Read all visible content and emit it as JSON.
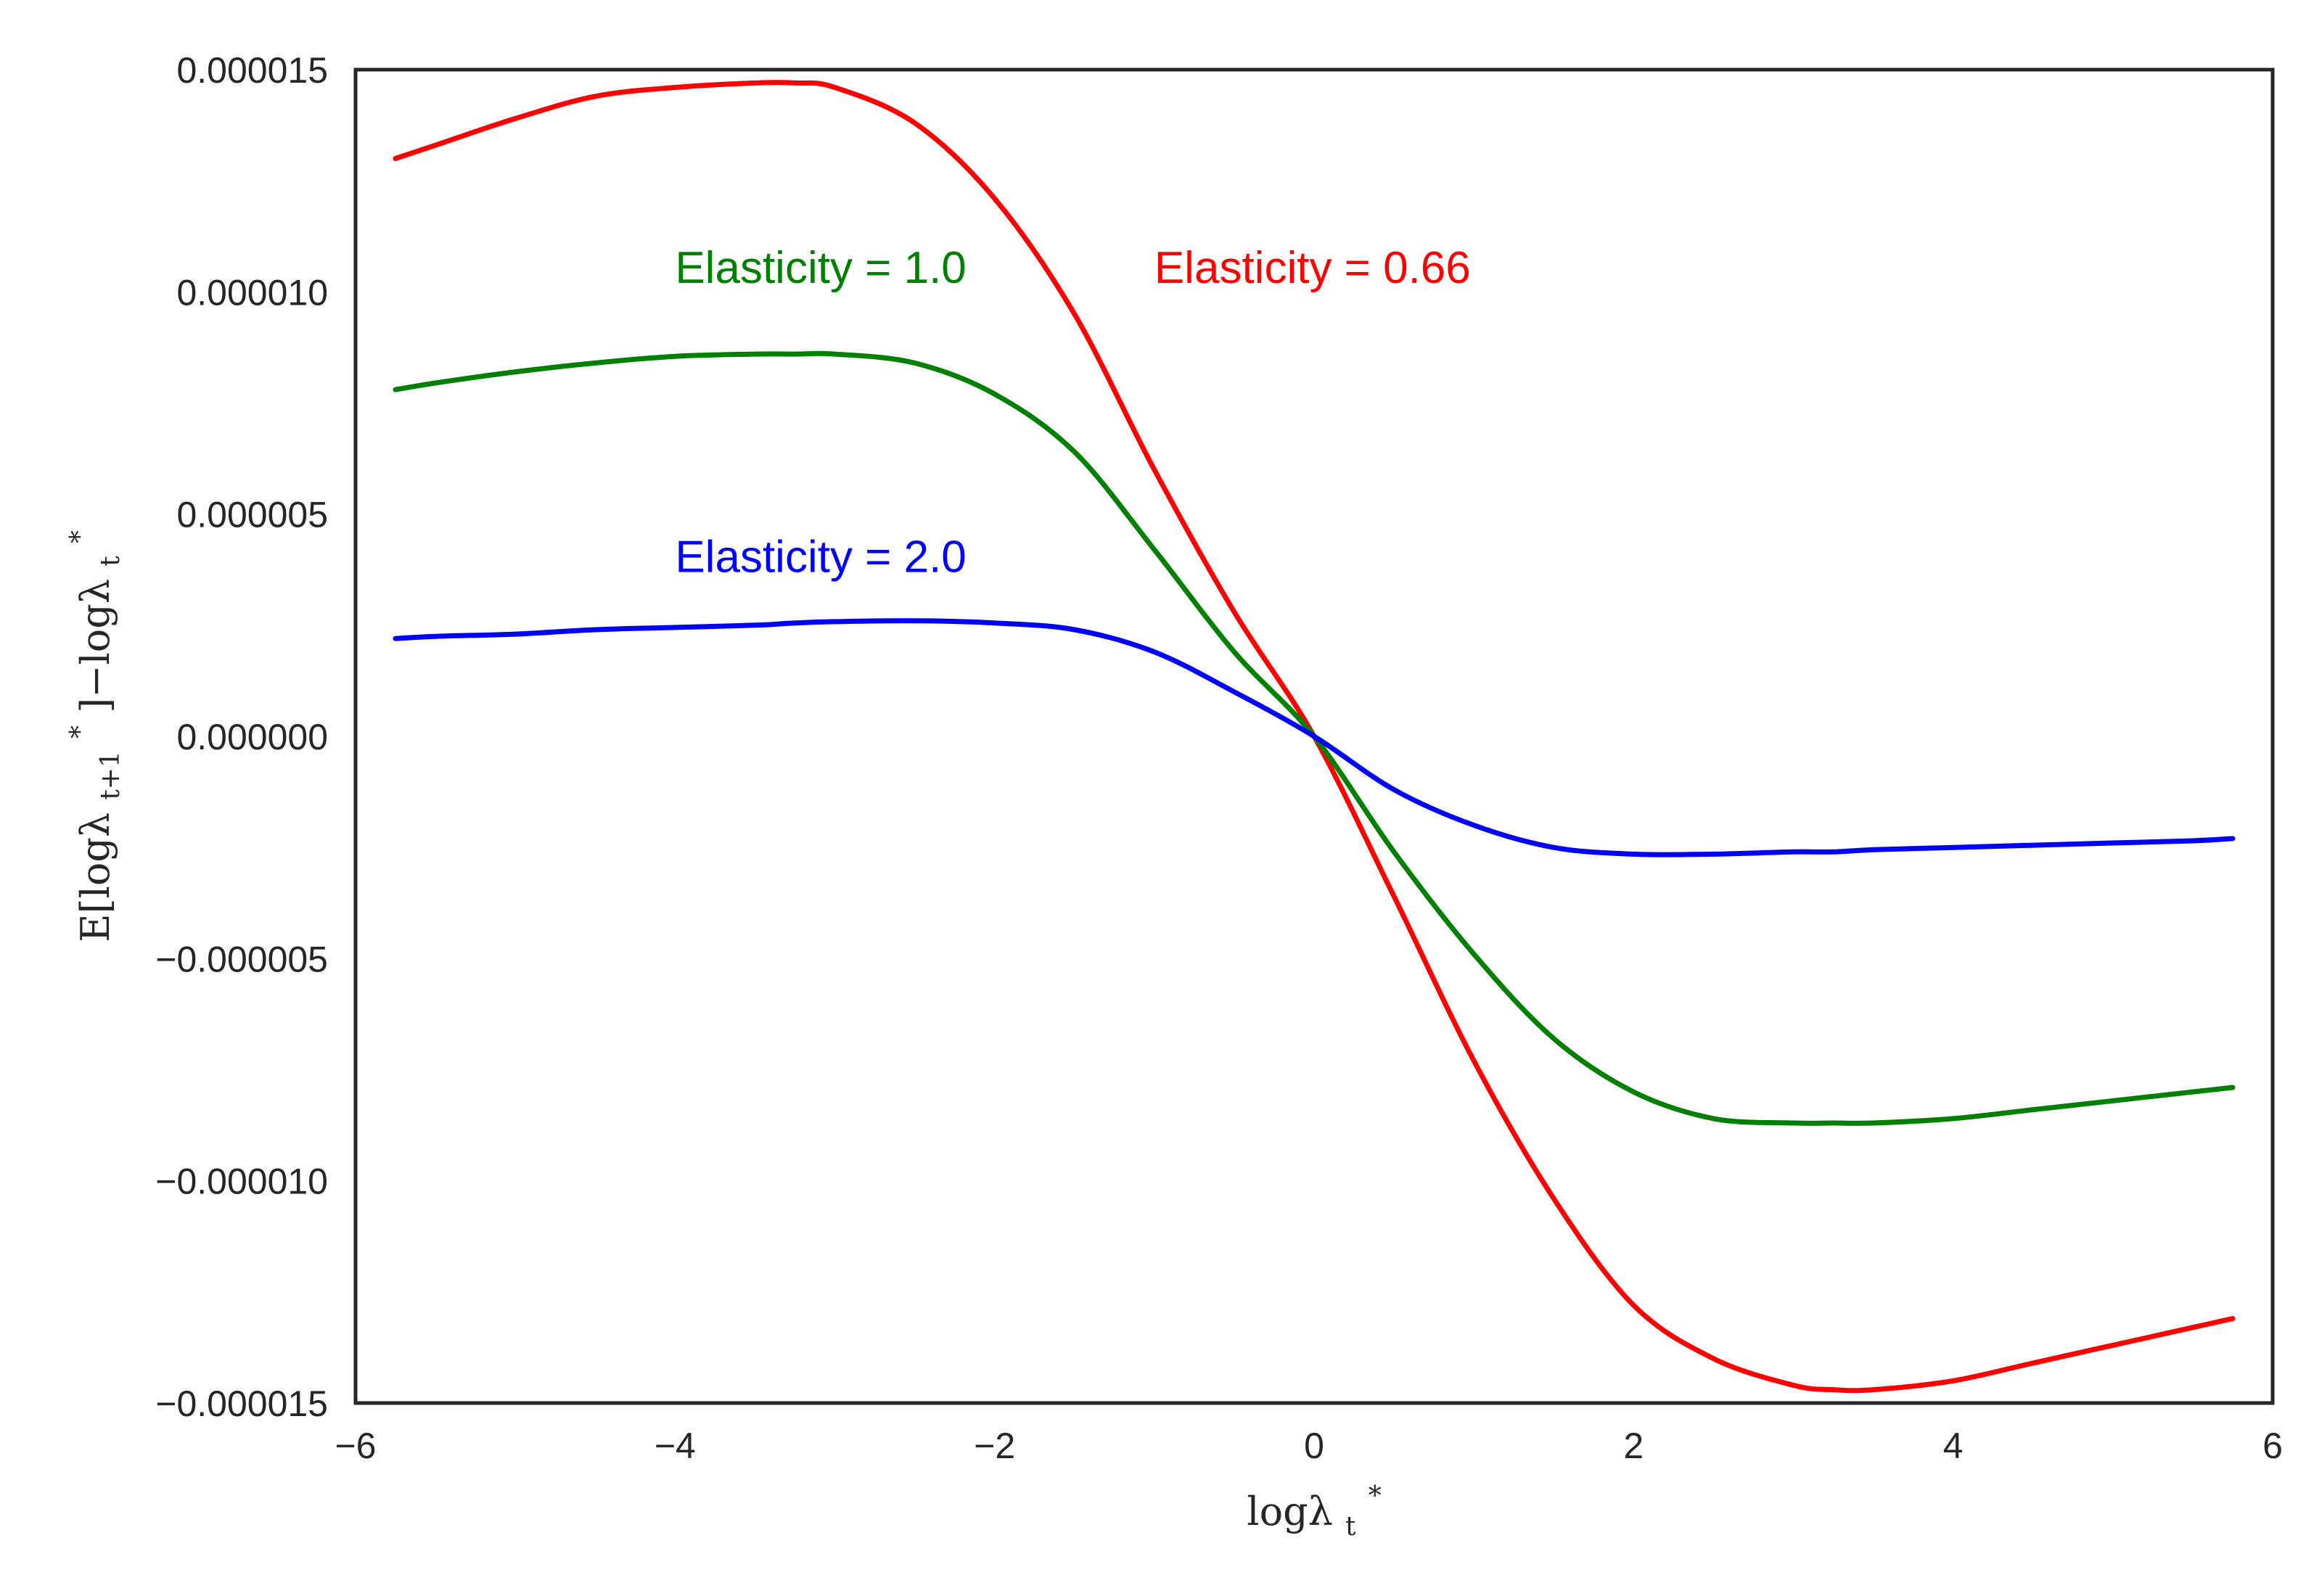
{
  "chart_data": {
    "type": "line",
    "xlabel": "logλ",
    "xlabel_sub": "t",
    "xlabel_sup": "*",
    "ylabel": "E[logλ",
    "ylabel_sub": "t+1",
    "ylabel_sup": "*",
    "ylabel_rest": "]−logλ",
    "ylabel_sub2": "t",
    "ylabel_sup2": "*",
    "xlim": [
      -6,
      6
    ],
    "ylim": [
      -1.5e-05,
      1.5e-05
    ],
    "x_ticks": [
      -6,
      -4,
      -2,
      0,
      2,
      4,
      6
    ],
    "x_tick_labels": [
      "−6",
      "−4",
      "−2",
      "0",
      "2",
      "4",
      "6"
    ],
    "y_ticks": [
      1.5e-05,
      1e-05,
      5e-06,
      0,
      -5e-06,
      -1e-05,
      -1.5e-05
    ],
    "y_tick_labels": [
      "0.000015",
      "0.000010",
      "0.000005",
      "0.000000",
      "−0.000005",
      "−0.000010",
      "−0.000015"
    ],
    "grid": false,
    "x": [
      -5.75,
      -5.5,
      -5,
      -4.5,
      -4,
      -3.5,
      -3.25,
      -3,
      -2.5,
      -2,
      -1.5,
      -1,
      -0.5,
      0,
      0.5,
      1,
      1.5,
      2,
      2.5,
      3,
      3.25,
      3.5,
      4,
      4.5,
      5,
      5.5,
      5.75
    ],
    "series": [
      {
        "color": "#ff0000",
        "values": [
          1.3e-05,
          1.33e-05,
          1.39e-05,
          1.44e-05,
          1.46e-05,
          1.47e-05,
          1.47e-05,
          1.46e-05,
          1.38e-05,
          1.21e-05,
          9.5e-06,
          6e-06,
          2.8e-06,
          0,
          -3.6e-06,
          -7.3e-06,
          -1.04e-05,
          -1.28e-05,
          -1.4e-05,
          -1.46e-05,
          -1.47e-05,
          -1.47e-05,
          -1.45e-05,
          -1.41e-05,
          -1.37e-05,
          -1.33e-05,
          -1.31e-05
        ]
      },
      {
        "color": "#008000",
        "values": [
          7.8e-06,
          7.95e-06,
          8.2e-06,
          8.4e-06,
          8.55e-06,
          8.6e-06,
          8.6e-06,
          8.6e-06,
          8.4e-06,
          7.7e-06,
          6.4e-06,
          4.2e-06,
          1.9e-06,
          0,
          -2.6e-06,
          -4.9e-06,
          -6.8e-06,
          -8e-06,
          -8.6e-06,
          -8.7e-06,
          -8.7e-06,
          -8.7e-06,
          -8.6e-06,
          -8.4e-06,
          -8.2e-06,
          -8e-06,
          -7.9e-06
        ]
      },
      {
        "color": "#0000ff",
        "values": [
          2.2e-06,
          2.25e-06,
          2.3e-06,
          2.4e-06,
          2.45e-06,
          2.5e-06,
          2.55e-06,
          2.58e-06,
          2.6e-06,
          2.55e-06,
          2.4e-06,
          1.9e-06,
          1e-06,
          0,
          -1.2e-06,
          -2e-06,
          -2.5e-06,
          -2.65e-06,
          -2.65e-06,
          -2.6e-06,
          -2.6e-06,
          -2.55e-06,
          -2.5e-06,
          -2.45e-06,
          -2.4e-06,
          -2.35e-06,
          -2.3e-06
        ]
      }
    ],
    "annotations": [
      {
        "text": "Elasticity = 1.0",
        "color": "#008000",
        "x": -4.0,
        "y": 1.02e-05
      },
      {
        "text": "Elasticity = 0.66",
        "color": "#ff0000",
        "x": -1.0,
        "y": 1.02e-05
      },
      {
        "text": "Elasticity = 2.0",
        "color": "#0000ff",
        "x": -4.0,
        "y": 3.7e-06
      }
    ]
  }
}
